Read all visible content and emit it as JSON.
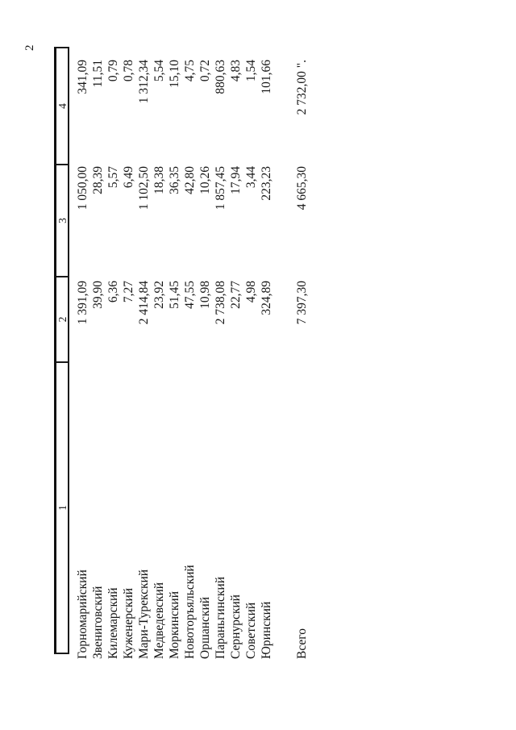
{
  "page": {
    "number": "2"
  },
  "table": {
    "header": {
      "col1": "1",
      "col2": "2",
      "col3": "3",
      "col4": "4"
    },
    "rows": [
      {
        "name": "Горномарийский",
        "col2": "1 391,09",
        "col3": "1 050,00",
        "col4": "341,09"
      },
      {
        "name": "Звениговский",
        "col2": "39,90",
        "col3": "28,39",
        "col4": "11,51"
      },
      {
        "name": "Килемарский",
        "col2": "6,36",
        "col3": "5,57",
        "col4": "0,79"
      },
      {
        "name": "Куженерский",
        "col2": "7,27",
        "col3": "6,49",
        "col4": "0,78"
      },
      {
        "name": "Мари-Турекский",
        "col2": "2 414,84",
        "col3": "1 102,50",
        "col4": "1 312,34"
      },
      {
        "name": "Медведевский",
        "col2": "23,92",
        "col3": "18,38",
        "col4": "5,54"
      },
      {
        "name": "Моркинский",
        "col2": "51,45",
        "col3": "36,35",
        "col4": "15,10"
      },
      {
        "name": "Новоторъяльский",
        "col2": "47,55",
        "col3": "42,80",
        "col4": "4,75"
      },
      {
        "name": "Оршанский",
        "col2": "10,98",
        "col3": "10,26",
        "col4": "0,72"
      },
      {
        "name": "Параньгинский",
        "col2": "2 738,08",
        "col3": "1 857,45",
        "col4": "880,63"
      },
      {
        "name": "Сернурский",
        "col2": "22,77",
        "col3": "17,94",
        "col4": "4,83"
      },
      {
        "name": "Советский",
        "col2": "4,98",
        "col3": "3,44",
        "col4": "1,54"
      },
      {
        "name": "Юринский",
        "col2": "324,89",
        "col3": "223,23",
        "col4": "101,66"
      }
    ],
    "total": {
      "label": "Всего",
      "col2": "7 397,30",
      "col3": "4 665,30",
      "col4": "2 732,00 \"."
    }
  }
}
